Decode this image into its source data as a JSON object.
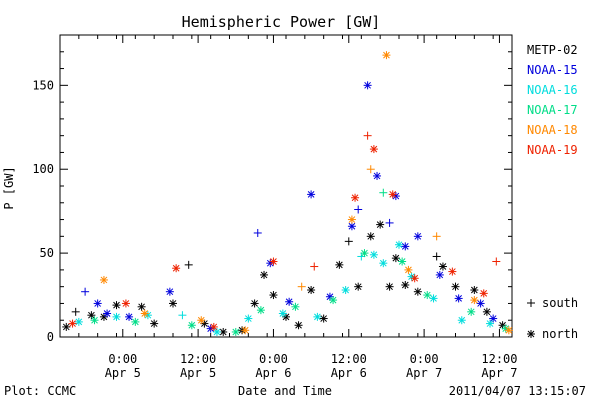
{
  "chart_data": {
    "type": "scatter",
    "title": "Hemispheric Power [GW]",
    "ylabel": "P [GW]",
    "xlabel": "Date and Time",
    "ylim": [
      0,
      180
    ],
    "xlim": [
      "2011-04-04T14:00",
      "2011-04-07T14:00"
    ],
    "yticks": [
      0,
      50,
      100,
      150
    ],
    "xticks": [
      {
        "time": "2011-04-05T00:00",
        "l1": "0:00",
        "l2": "Apr 5"
      },
      {
        "time": "2011-04-05T12:00",
        "l1": "12:00",
        "l2": "Apr 5"
      },
      {
        "time": "2011-04-06T00:00",
        "l1": "0:00",
        "l2": "Apr 6"
      },
      {
        "time": "2011-04-06T12:00",
        "l1": "12:00",
        "l2": "Apr 6"
      },
      {
        "time": "2011-04-07T00:00",
        "l1": "0:00",
        "l2": "Apr 7"
      },
      {
        "time": "2011-04-07T12:00",
        "l1": "12:00",
        "l2": "Apr 7"
      }
    ],
    "marker_legend": [
      {
        "symbol": "+",
        "label": "south"
      },
      {
        "symbol": "*",
        "label": "north"
      }
    ],
    "series": [
      {
        "name": "METP-02",
        "color": "#000000",
        "points": [
          [
            "2011-04-04T15:00",
            6,
            "*"
          ],
          [
            "2011-04-04T16:30",
            15,
            "+"
          ],
          [
            "2011-04-04T19:00",
            13,
            "*"
          ],
          [
            "2011-04-04T21:00",
            12,
            "*"
          ],
          [
            "2011-04-04T23:00",
            19,
            "*"
          ],
          [
            "2011-04-05T03:00",
            18,
            "*"
          ],
          [
            "2011-04-05T05:00",
            8,
            "*"
          ],
          [
            "2011-04-05T08:00",
            20,
            "*"
          ],
          [
            "2011-04-05T10:30",
            43,
            "+"
          ],
          [
            "2011-04-05T13:00",
            8,
            "*"
          ],
          [
            "2011-04-05T16:00",
            3,
            "*"
          ],
          [
            "2011-04-05T19:00",
            4,
            "*"
          ],
          [
            "2011-04-05T21:00",
            20,
            "*"
          ],
          [
            "2011-04-05T22:30",
            37,
            "*"
          ],
          [
            "2011-04-06T00:00",
            25,
            "*"
          ],
          [
            "2011-04-06T02:00",
            12,
            "*"
          ],
          [
            "2011-04-06T04:00",
            7,
            "*"
          ],
          [
            "2011-04-06T06:00",
            28,
            "*"
          ],
          [
            "2011-04-06T08:00",
            11,
            "*"
          ],
          [
            "2011-04-06T10:30",
            43,
            "*"
          ],
          [
            "2011-04-06T12:00",
            57,
            "+"
          ],
          [
            "2011-04-06T13:30",
            30,
            "*"
          ],
          [
            "2011-04-06T15:30",
            60,
            "*"
          ],
          [
            "2011-04-06T17:00",
            67,
            "*"
          ],
          [
            "2011-04-06T18:30",
            30,
            "*"
          ],
          [
            "2011-04-06T19:30",
            47,
            "*"
          ],
          [
            "2011-04-06T21:00",
            31,
            "*"
          ],
          [
            "2011-04-06T23:00",
            27,
            "*"
          ],
          [
            "2011-04-07T02:00",
            48,
            "+"
          ],
          [
            "2011-04-07T03:00",
            42,
            "*"
          ],
          [
            "2011-04-07T05:00",
            30,
            "*"
          ],
          [
            "2011-04-07T08:00",
            28,
            "*"
          ],
          [
            "2011-04-07T10:00",
            15,
            "*"
          ],
          [
            "2011-04-07T12:30",
            7,
            "*"
          ]
        ]
      },
      {
        "name": "NOAA-15",
        "color": "#0000dd",
        "points": [
          [
            "2011-04-04T18:00",
            27,
            "+"
          ],
          [
            "2011-04-04T20:00",
            20,
            "*"
          ],
          [
            "2011-04-04T21:30",
            14,
            "*"
          ],
          [
            "2011-04-05T01:00",
            12,
            "*"
          ],
          [
            "2011-04-05T07:30",
            27,
            "*"
          ],
          [
            "2011-04-05T14:00",
            5,
            "*"
          ],
          [
            "2011-04-05T21:30",
            62,
            "+"
          ],
          [
            "2011-04-05T23:30",
            44,
            "*"
          ],
          [
            "2011-04-06T02:30",
            21,
            "*"
          ],
          [
            "2011-04-06T06:00",
            85,
            "*"
          ],
          [
            "2011-04-06T09:00",
            24,
            "*"
          ],
          [
            "2011-04-06T12:30",
            66,
            "*"
          ],
          [
            "2011-04-06T13:30",
            76,
            "+"
          ],
          [
            "2011-04-06T15:00",
            150,
            "*"
          ],
          [
            "2011-04-06T16:30",
            96,
            "*"
          ],
          [
            "2011-04-06T18:30",
            68,
            "+"
          ],
          [
            "2011-04-06T19:30",
            84,
            "*"
          ],
          [
            "2011-04-06T21:00",
            54,
            "*"
          ],
          [
            "2011-04-06T23:00",
            60,
            "*"
          ],
          [
            "2011-04-07T02:30",
            37,
            "*"
          ],
          [
            "2011-04-07T05:30",
            23,
            "*"
          ],
          [
            "2011-04-07T09:00",
            20,
            "*"
          ],
          [
            "2011-04-07T11:00",
            11,
            "*"
          ]
        ]
      },
      {
        "name": "NOAA-16",
        "color": "#00dddd",
        "points": [
          [
            "2011-04-04T17:00",
            9,
            "*"
          ],
          [
            "2011-04-04T23:00",
            12,
            "*"
          ],
          [
            "2011-04-05T04:00",
            13,
            "*"
          ],
          [
            "2011-04-05T09:30",
            13,
            "+"
          ],
          [
            "2011-04-05T15:00",
            3,
            "*"
          ],
          [
            "2011-04-05T20:00",
            11,
            "*"
          ],
          [
            "2011-04-06T01:30",
            14,
            "*"
          ],
          [
            "2011-04-06T07:00",
            12,
            "*"
          ],
          [
            "2011-04-06T11:30",
            28,
            "*"
          ],
          [
            "2011-04-06T14:00",
            48,
            "+"
          ],
          [
            "2011-04-06T16:00",
            49,
            "*"
          ],
          [
            "2011-04-06T17:30",
            44,
            "*"
          ],
          [
            "2011-04-06T20:00",
            55,
            "*"
          ],
          [
            "2011-04-06T22:00",
            36,
            "*"
          ],
          [
            "2011-04-07T01:30",
            23,
            "*"
          ],
          [
            "2011-04-07T06:00",
            10,
            "*"
          ],
          [
            "2011-04-07T10:30",
            8,
            "*"
          ]
        ]
      },
      {
        "name": "NOAA-17",
        "color": "#00dd88",
        "points": [
          [
            "2011-04-04T19:30",
            10,
            "*"
          ],
          [
            "2011-04-05T02:00",
            9,
            "*"
          ],
          [
            "2011-04-05T11:00",
            7,
            "*"
          ],
          [
            "2011-04-05T18:00",
            3,
            "*"
          ],
          [
            "2011-04-05T22:00",
            16,
            "*"
          ],
          [
            "2011-04-06T03:30",
            18,
            "*"
          ],
          [
            "2011-04-06T09:30",
            22,
            "*"
          ],
          [
            "2011-04-06T14:30",
            50,
            "*"
          ],
          [
            "2011-04-06T17:30",
            86,
            "+"
          ],
          [
            "2011-04-06T20:30",
            45,
            "*"
          ],
          [
            "2011-04-07T00:30",
            25,
            "*"
          ],
          [
            "2011-04-07T07:30",
            15,
            "*"
          ],
          [
            "2011-04-07T13:00",
            5,
            "*"
          ]
        ]
      },
      {
        "name": "NOAA-18",
        "color": "#ff8800",
        "points": [
          [
            "2011-04-04T21:00",
            34,
            "*"
          ],
          [
            "2011-04-05T03:30",
            14,
            "*"
          ],
          [
            "2011-04-05T12:30",
            10,
            "*"
          ],
          [
            "2011-04-05T19:30",
            4,
            "*"
          ],
          [
            "2011-04-06T04:30",
            30,
            "+"
          ],
          [
            "2011-04-06T12:30",
            70,
            "*"
          ],
          [
            "2011-04-06T15:30",
            100,
            "+"
          ],
          [
            "2011-04-06T18:00",
            168,
            "*"
          ],
          [
            "2011-04-06T21:30",
            40,
            "*"
          ],
          [
            "2011-04-07T02:00",
            60,
            "+"
          ],
          [
            "2011-04-07T08:00",
            22,
            "*"
          ],
          [
            "2011-04-07T13:30",
            4,
            "*"
          ]
        ]
      },
      {
        "name": "NOAA-19",
        "color": "#ee2200",
        "points": [
          [
            "2011-04-04T16:00",
            8,
            "*"
          ],
          [
            "2011-04-05T00:30",
            20,
            "*"
          ],
          [
            "2011-04-05T08:30",
            41,
            "*"
          ],
          [
            "2011-04-05T14:30",
            6,
            "*"
          ],
          [
            "2011-04-06T00:00",
            45,
            "*"
          ],
          [
            "2011-04-06T06:30",
            42,
            "+"
          ],
          [
            "2011-04-06T13:00",
            83,
            "*"
          ],
          [
            "2011-04-06T15:00",
            120,
            "+"
          ],
          [
            "2011-04-06T16:00",
            112,
            "*"
          ],
          [
            "2011-04-06T19:00",
            85,
            "*"
          ],
          [
            "2011-04-06T22:30",
            35,
            "*"
          ],
          [
            "2011-04-07T04:30",
            39,
            "*"
          ],
          [
            "2011-04-07T09:30",
            26,
            "*"
          ],
          [
            "2011-04-07T11:30",
            45,
            "+"
          ]
        ]
      }
    ]
  },
  "footer": {
    "plot_label": "Plot: CCMC",
    "timestamp": "2011/04/07 13:15:07"
  }
}
